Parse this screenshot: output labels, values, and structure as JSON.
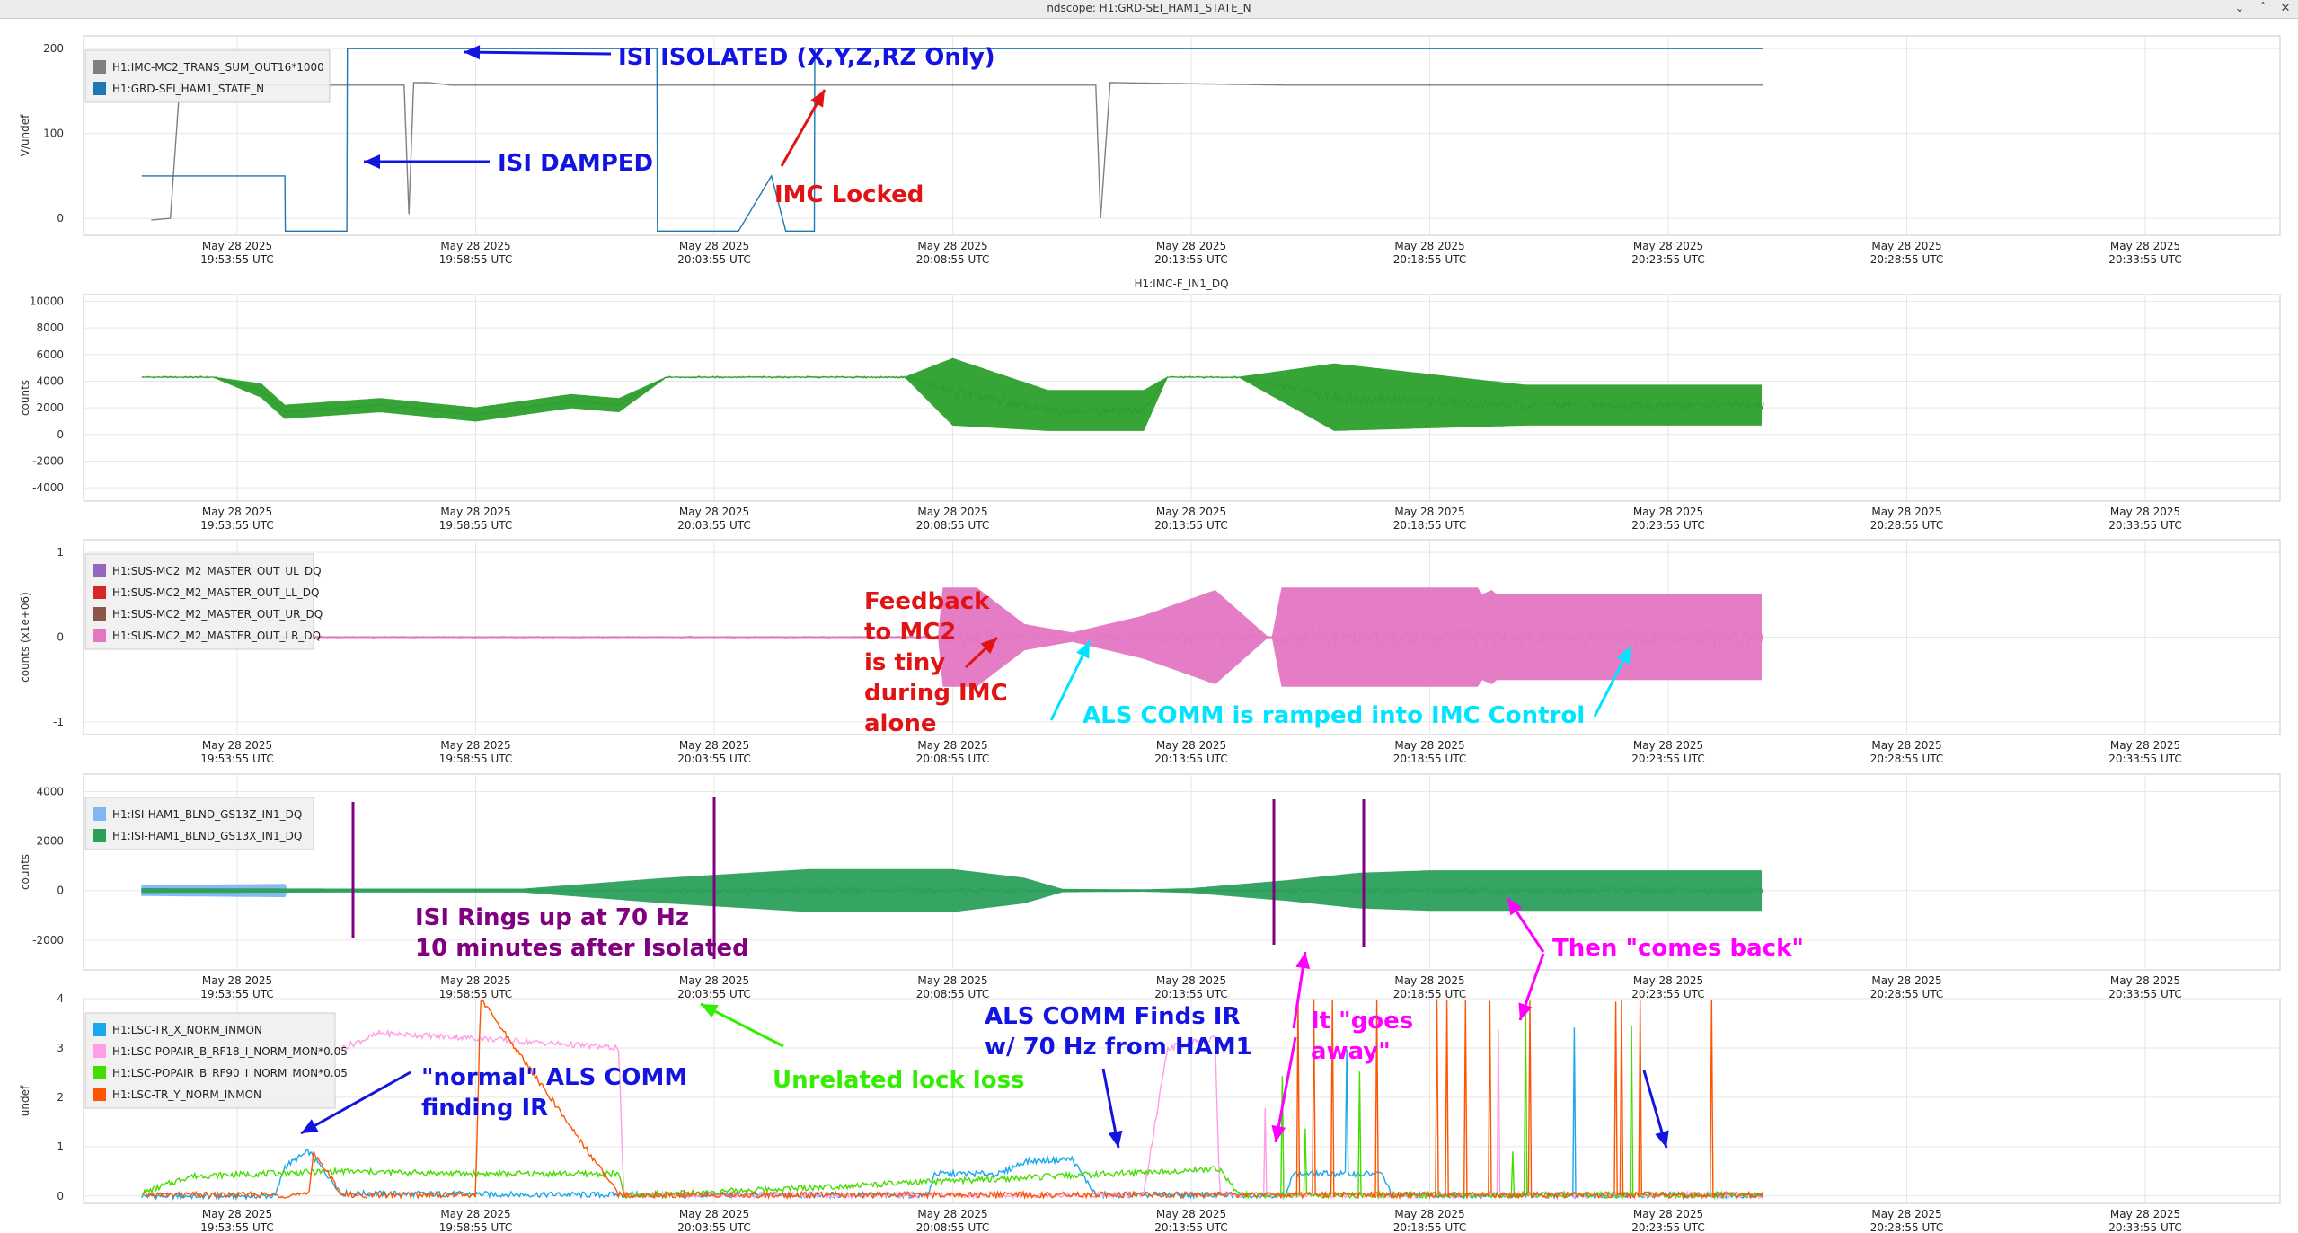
{
  "window": {
    "title": "ndscope: H1:GRD-SEI_HAM1_STATE_N",
    "min_icon": "minimize-icon",
    "max_icon": "maximize-icon",
    "close_icon": "close-icon"
  },
  "time_ticks": [
    {
      "date": "May 28 2025",
      "time": "19:53:55 UTC"
    },
    {
      "date": "May 28 2025",
      "time": "19:58:55 UTC"
    },
    {
      "date": "May 28 2025",
      "time": "20:03:55 UTC"
    },
    {
      "date": "May 28 2025",
      "time": "20:08:55 UTC"
    },
    {
      "date": "May 28 2025",
      "time": "20:13:55 UTC"
    },
    {
      "date": "May 28 2025",
      "time": "20:18:55 UTC"
    },
    {
      "date": "May 28 2025",
      "time": "20:23:55 UTC"
    },
    {
      "date": "May 28 2025",
      "time": "20:28:55 UTC"
    },
    {
      "date": "May 28 2025",
      "time": "20:33:55 UTC"
    }
  ],
  "chart_data": [
    {
      "type": "line",
      "title": "",
      "ylabel": "V/undef",
      "ylim": [
        -20,
        215
      ],
      "yticks": [
        0,
        100,
        200
      ],
      "grid": true,
      "legend_placement": "top-left",
      "series": [
        {
          "name": "H1:IMC-MC2_TRANS_SUM_OUT16*1000",
          "color": "#808080",
          "x_min": [
            -1.8,
            -1.4,
            -1.2,
            -1.0,
            3.5,
            3.6,
            3.7,
            4.0,
            4.5,
            9.8,
            18.0,
            18.1,
            18.3,
            22.0,
            32.0
          ],
          "y": [
            -2,
            0,
            160,
            157,
            157,
            5,
            160,
            160,
            157,
            157,
            157,
            0,
            160,
            157,
            157
          ]
        },
        {
          "name": "H1:GRD-SEI_HAM1_STATE_N",
          "color": "#1f77b4",
          "x_min": [
            -2.0,
            1.0,
            1.01,
            2.3,
            2.31,
            8.8,
            8.81,
            10.5,
            10.51,
            11.2,
            11.5,
            12.1,
            12.11,
            32.0
          ],
          "y": [
            50,
            50,
            -15,
            -15,
            200,
            200,
            -15,
            -15,
            -15,
            50,
            -15,
            -15,
            200,
            200
          ]
        }
      ],
      "annotations": [
        {
          "text": "ISI ISOLATED (X,Y,Z,RZ Only)",
          "color": "#1414e0"
        },
        {
          "text": "ISI DAMPED",
          "color": "#1414e0"
        },
        {
          "text": "IMC Locked",
          "color": "#e01414"
        }
      ]
    },
    {
      "type": "line",
      "title": "H1:IMC-F_IN1_DQ",
      "ylabel": "counts",
      "ylim": [
        -5000,
        10500
      ],
      "yticks": [
        -4000,
        -2000,
        0,
        2000,
        4000,
        6000,
        8000,
        10000
      ],
      "grid": true,
      "series": [
        {
          "name": "H1:IMC-F_IN1_DQ",
          "color": "#2ca02c",
          "x_min": [
            -2.0,
            -0.5,
            0.5,
            1.0,
            3.0,
            5.0,
            7.0,
            8.0,
            9.0,
            14.0,
            15.0,
            17.0,
            19.0,
            19.5,
            20.0,
            21.0,
            23.0,
            25.0,
            27.0,
            32.0
          ],
          "y": [
            4300,
            4300,
            3300,
            1700,
            2200,
            1500,
            2500,
            2200,
            4300,
            4300,
            3200,
            1800,
            1800,
            4300,
            4300,
            4300,
            2800,
            2500,
            2200,
            2200
          ],
          "envelope": [
            0,
            0,
            500,
            500,
            500,
            500,
            500,
            500,
            0,
            0,
            2500,
            1500,
            1500,
            0,
            0,
            0,
            2500,
            2000,
            1500,
            1500
          ]
        }
      ]
    },
    {
      "type": "line",
      "title": "",
      "ylabel": "counts (x1e+06)",
      "ylim": [
        -1.15,
        1.15
      ],
      "yticks": [
        -1,
        0,
        1
      ],
      "grid": true,
      "legend_placement": "top-left",
      "series": [
        {
          "name": "H1:SUS-MC2_M2_MASTER_OUT_UL_DQ",
          "color": "#9467bd"
        },
        {
          "name": "H1:SUS-MC2_M2_MASTER_OUT_LL_DQ",
          "color": "#d62728"
        },
        {
          "name": "H1:SUS-MC2_M2_MASTER_OUT_UR_DQ",
          "color": "#8c564b"
        },
        {
          "name": "H1:SUS-MC2_M2_MASTER_OUT_LR_DQ",
          "color": "#e377c2",
          "x_min": [
            -2.0,
            14.7,
            14.8,
            15.5,
            16.5,
            17.5,
            19.0,
            20.5,
            21.6,
            21.7,
            21.9,
            22.0,
            26.0,
            26.1,
            26.3,
            26.4,
            32.0
          ],
          "y": [
            0,
            0,
            0,
            0,
            0,
            0,
            0,
            0,
            0,
            0,
            0,
            0,
            0,
            0,
            0,
            0,
            0
          ],
          "envelope": [
            0.005,
            0.005,
            0.58,
            0.58,
            0.15,
            0.05,
            0.25,
            0.55,
            0.005,
            0.005,
            0.58,
            0.58,
            0.58,
            0.5,
            0.55,
            0.5,
            0.5
          ]
        }
      ],
      "annotations": [
        {
          "text": "Feedback to MC2 is tiny during IMC alone",
          "color": "#e01414"
        },
        {
          "text": "ALS COMM is ramped into IMC Control",
          "color": "#00e5ff"
        }
      ]
    },
    {
      "type": "line",
      "title": "",
      "ylabel": "counts",
      "ylim": [
        -3200,
        4700
      ],
      "yticks": [
        -2000,
        0,
        2000,
        4000
      ],
      "grid": true,
      "legend_placement": "top-left",
      "series": [
        {
          "name": "H1:ISI-HAM1_BLND_GS13Z_IN1_DQ",
          "color": "#7fb7f2",
          "x_min": [
            -2.0,
            1.0,
            1.01,
            32.0
          ],
          "y": [
            0,
            0,
            0,
            0
          ],
          "envelope": [
            200,
            250,
            30,
            30
          ]
        },
        {
          "name": "H1:ISI-HAM1_BLND_GS13X_IN1_DQ",
          "color": "#2ca05a",
          "x_min": [
            -2.0,
            2.5,
            6.0,
            9.0,
            12.0,
            15.0,
            16.5,
            17.3,
            18.0,
            19.0,
            20.0,
            22.0,
            23.5,
            25.0,
            28.0,
            32.0
          ],
          "y": [
            0,
            0,
            0,
            0,
            0,
            0,
            0,
            0,
            0,
            0,
            0,
            0,
            0,
            0,
            0,
            0
          ],
          "envelope": [
            80,
            60,
            60,
            500,
            850,
            850,
            500,
            50,
            40,
            30,
            80,
            400,
            700,
            800,
            800,
            800
          ]
        }
      ],
      "annotations": [
        {
          "text": "ISI Rings up at 70 Hz",
          "color": "#800080"
        },
        {
          "text": "10 minutes after Isolated",
          "color": "#800080"
        },
        {
          "text": "Then \"comes back\"",
          "color": "#ff00ff"
        }
      ]
    },
    {
      "type": "line",
      "title": "",
      "ylabel": "undef",
      "ylim": [
        -0.15,
        4.0
      ],
      "yticks": [
        0,
        1,
        2,
        3,
        4
      ],
      "grid": true,
      "legend_placement": "top-left",
      "series": [
        {
          "name": "H1:LSC-TR_X_NORM_INMON",
          "color": "#1aa7ec",
          "x_min": [
            -2.0,
            0.8,
            1.0,
            1.5,
            2.2,
            8.0,
            14.5,
            14.6,
            16.0,
            16.5,
            17.5,
            18.0,
            18.5,
            22.0,
            22.1,
            24.0,
            24.2,
            26.0,
            32.0
          ],
          "y": [
            0,
            0,
            0.6,
            0.9,
            0.05,
            0.02,
            0.02,
            0.45,
            0.45,
            0.7,
            0.75,
            0.02,
            0.02,
            0.02,
            0.45,
            0.45,
            0.02,
            0.02,
            0.02
          ]
        },
        {
          "name": "H1:LSC-POPAIR_B_RF18_I_NORM_MON*0.05",
          "color": "#ff9ee6",
          "x_min": [
            2.2,
            3.0,
            5.0,
            8.0,
            8.1,
            19.0,
            19.5,
            20.5,
            20.6,
            32.0
          ],
          "y": [
            3.0,
            3.3,
            3.2,
            3.0,
            0.02,
            0.02,
            3.0,
            3.2,
            0.02,
            0.02
          ]
        },
        {
          "name": "H1:LSC-POPAIR_B_RF90_I_NORM_MON*0.05",
          "color": "#44dd00",
          "x_min": [
            -2.0,
            -1.0,
            2.0,
            5.0,
            8.0,
            8.1,
            20.6,
            21.0,
            32.0
          ],
          "y": [
            0.05,
            0.4,
            0.5,
            0.45,
            0.45,
            0.0,
            0.55,
            0.02,
            0.02
          ]
        },
        {
          "name": "H1:LSC-TR_Y_NORM_INMON",
          "color": "#ff5500",
          "x_min": [
            -2.0,
            1.5,
            1.6,
            2.2,
            5.0,
            5.1,
            8.0,
            32.0
          ],
          "y": [
            0.02,
            0.02,
            0.9,
            0.02,
            0.02,
            4.0,
            0.02,
            0.02
          ]
        }
      ],
      "annotations": [
        {
          "text": "\"normal\" ALS COMM",
          "color": "#1414e0"
        },
        {
          "text": "finding IR",
          "color": "#1414e0"
        },
        {
          "text": "Unrelated lock loss",
          "color": "#33ee00"
        },
        {
          "text": "ALS COMM Finds IR",
          "color": "#1414e0"
        },
        {
          "text": "w/ 70 Hz from HAM1",
          "color": "#1414e0"
        },
        {
          "text": "It \"goes",
          "color": "#ff00ff"
        },
        {
          "text": "away\"",
          "color": "#ff00ff"
        }
      ]
    }
  ]
}
